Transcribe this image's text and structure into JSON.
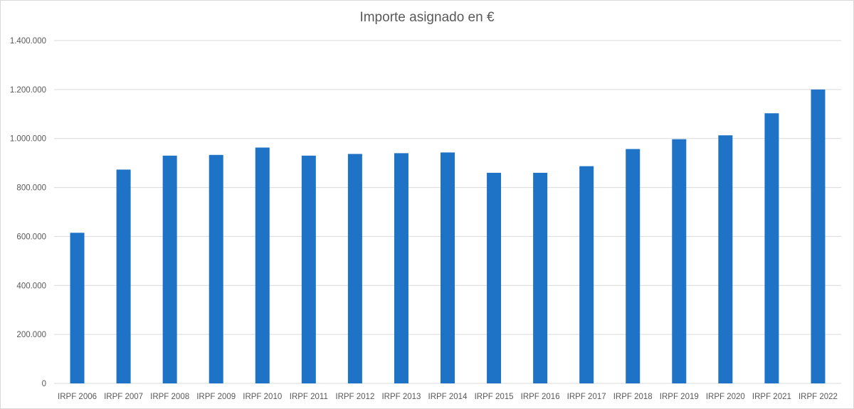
{
  "chart_data": {
    "type": "bar",
    "title": "Importe asignado en €",
    "xlabel": "",
    "ylabel": "",
    "categories": [
      "IRPF 2006",
      "IRPF 2007",
      "IRPF 2008",
      "IRPF 2009",
      "IRPF 2010",
      "IRPF 2011",
      "IRPF 2012",
      "IRPF 2013",
      "IRPF 2014",
      "IRPF 2015",
      "IRPF 2016",
      "IRPF 2017",
      "IRPF 2018",
      "IRPF 2019",
      "IRPF 2020",
      "IRPF 2021",
      "IRPF 2022"
    ],
    "values": [
      615000,
      873000,
      930000,
      933000,
      963000,
      930000,
      937000,
      940000,
      943000,
      860000,
      860000,
      887000,
      957000,
      997000,
      1013000,
      1103000,
      1200000
    ],
    "ylim": [
      0,
      1400000
    ],
    "yticks": [
      0,
      200000,
      400000,
      600000,
      800000,
      1000000,
      1200000,
      1400000
    ],
    "ytick_labels": [
      "0",
      "200.000",
      "400.000",
      "600.000",
      "800.000",
      "1.000.000",
      "1.200.000",
      "1.400.000"
    ],
    "bar_color": "#1f73c6",
    "grid_color": "#d9d9d9",
    "grid": true,
    "legend": "none"
  }
}
